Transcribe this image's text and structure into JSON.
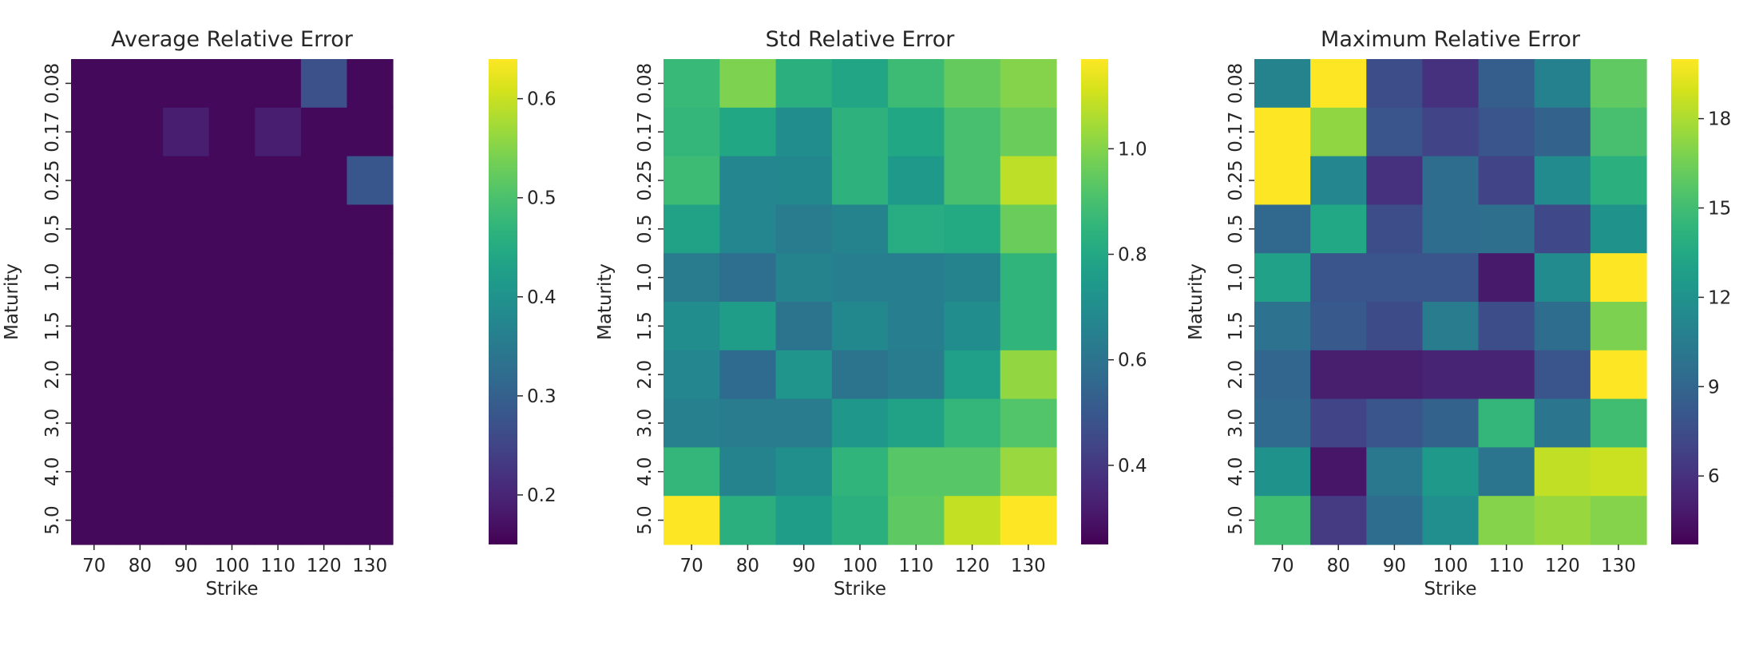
{
  "chart_data": [
    {
      "type": "heatmap",
      "title": "Average Relative Error",
      "xlabel": "Strike",
      "ylabel": "Maturity",
      "x": [
        "70",
        "80",
        "90",
        "100",
        "110",
        "120",
        "130"
      ],
      "y": [
        "0.08",
        "0.17",
        "0.25",
        "0.5",
        "1.0",
        "1.5",
        "2.0",
        "3.0",
        "4.0",
        "5.0"
      ],
      "colormap": "viridis",
      "vmin": 0.15,
      "vmax": 0.64,
      "colorbar_ticks": [
        0.2,
        0.3,
        0.4,
        0.5,
        0.6
      ],
      "colorbar_tick_labels": [
        "0.2",
        "0.3",
        "0.4",
        "0.5",
        "0.6"
      ],
      "values": [
        [
          0.16,
          0.16,
          0.16,
          0.16,
          0.16,
          0.27,
          0.16
        ],
        [
          0.16,
          0.16,
          0.19,
          0.16,
          0.19,
          0.16,
          0.16
        ],
        [
          0.16,
          0.16,
          0.16,
          0.16,
          0.16,
          0.16,
          0.28
        ],
        [
          0.16,
          0.16,
          0.16,
          0.16,
          0.16,
          0.16,
          0.16
        ],
        [
          0.16,
          0.16,
          0.16,
          0.16,
          0.16,
          0.16,
          0.16
        ],
        [
          0.16,
          0.16,
          0.16,
          0.16,
          0.16,
          0.16,
          0.16
        ],
        [
          0.16,
          0.16,
          0.16,
          0.16,
          0.16,
          0.16,
          0.16
        ],
        [
          0.16,
          0.16,
          0.16,
          0.16,
          0.16,
          0.16,
          0.16
        ],
        [
          0.16,
          0.16,
          0.16,
          0.16,
          0.16,
          0.16,
          0.16
        ],
        [
          0.16,
          0.16,
          0.16,
          0.16,
          0.16,
          0.16,
          0.16
        ]
      ]
    },
    {
      "type": "heatmap",
      "title": "Std Relative Error",
      "xlabel": "Strike",
      "ylabel": "Maturity",
      "x": [
        "70",
        "80",
        "90",
        "100",
        "110",
        "120",
        "130"
      ],
      "y": [
        "0.08",
        "0.17",
        "0.25",
        "0.5",
        "1.0",
        "1.5",
        "2.0",
        "3.0",
        "4.0",
        "5.0"
      ],
      "colormap": "viridis",
      "vmin": 0.25,
      "vmax": 1.17,
      "colorbar_ticks": [
        0.4,
        0.6,
        0.8,
        1.0
      ],
      "colorbar_tick_labels": [
        "0.4",
        "0.6",
        "0.8",
        "1.0"
      ],
      "values": [
        [
          0.87,
          0.99,
          0.83,
          0.79,
          0.88,
          0.95,
          1.0
        ],
        [
          0.86,
          0.8,
          0.7,
          0.84,
          0.8,
          0.9,
          0.96
        ],
        [
          0.88,
          0.67,
          0.68,
          0.84,
          0.75,
          0.9,
          1.08
        ],
        [
          0.78,
          0.67,
          0.63,
          0.66,
          0.82,
          0.81,
          0.96
        ],
        [
          0.63,
          0.58,
          0.66,
          0.64,
          0.64,
          0.66,
          0.85
        ],
        [
          0.7,
          0.76,
          0.6,
          0.68,
          0.64,
          0.7,
          0.85
        ],
        [
          0.67,
          0.57,
          0.73,
          0.6,
          0.63,
          0.77,
          1.02
        ],
        [
          0.65,
          0.63,
          0.63,
          0.74,
          0.78,
          0.86,
          0.92
        ],
        [
          0.86,
          0.66,
          0.71,
          0.85,
          0.93,
          0.93,
          1.03
        ],
        [
          1.17,
          0.83,
          0.76,
          0.83,
          0.94,
          1.09,
          1.17
        ]
      ]
    },
    {
      "type": "heatmap",
      "title": "Maximum Relative Error",
      "xlabel": "Strike",
      "ylabel": "Maturity",
      "x": [
        "70",
        "80",
        "90",
        "100",
        "110",
        "120",
        "130"
      ],
      "y": [
        "0.08",
        "0.17",
        "0.25",
        "0.5",
        "1.0",
        "1.5",
        "2.0",
        "3.0",
        "4.0",
        "5.0"
      ],
      "colormap": "viridis",
      "vmin": 3.7,
      "vmax": 20.0,
      "colorbar_ticks": [
        6,
        9,
        12,
        15,
        18
      ],
      "colorbar_tick_labels": [
        "6",
        "9",
        "12",
        "15",
        "18"
      ],
      "values": [
        [
          11.0,
          20.0,
          7.5,
          6.0,
          8.5,
          10.8,
          16.0
        ],
        [
          20.0,
          17.3,
          8.0,
          7.0,
          8.0,
          8.8,
          15.2
        ],
        [
          20.0,
          11.2,
          6.0,
          9.5,
          7.0,
          11.5,
          14.0
        ],
        [
          9.2,
          13.5,
          7.5,
          9.5,
          9.6,
          7.2,
          12.0
        ],
        [
          13.0,
          8.0,
          8.0,
          8.0,
          4.8,
          11.5,
          20.0
        ],
        [
          9.8,
          8.2,
          7.4,
          10.5,
          7.5,
          9.5,
          16.8
        ],
        [
          9.0,
          5.0,
          5.0,
          5.3,
          5.3,
          8.0,
          20.0
        ],
        [
          9.3,
          7.0,
          8.0,
          8.8,
          14.5,
          10.0,
          15.0
        ],
        [
          12.0,
          4.6,
          10.2,
          12.5,
          10.0,
          18.5,
          18.7
        ],
        [
          15.0,
          6.5,
          9.5,
          11.8,
          17.0,
          17.5,
          17.0
        ]
      ]
    }
  ]
}
